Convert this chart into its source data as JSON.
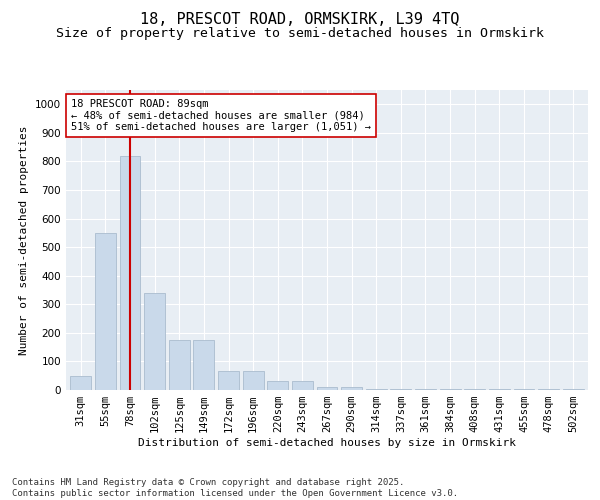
{
  "title_line1": "18, PRESCOT ROAD, ORMSKIRK, L39 4TQ",
  "title_line2": "Size of property relative to semi-detached houses in Ormskirk",
  "xlabel": "Distribution of semi-detached houses by size in Ormskirk",
  "ylabel": "Number of semi-detached properties",
  "categories": [
    "31sqm",
    "55sqm",
    "78sqm",
    "102sqm",
    "125sqm",
    "149sqm",
    "172sqm",
    "196sqm",
    "220sqm",
    "243sqm",
    "267sqm",
    "290sqm",
    "314sqm",
    "337sqm",
    "361sqm",
    "384sqm",
    "408sqm",
    "431sqm",
    "455sqm",
    "478sqm",
    "502sqm"
  ],
  "values": [
    50,
    550,
    820,
    340,
    175,
    175,
    65,
    65,
    30,
    30,
    10,
    10,
    5,
    5,
    5,
    5,
    5,
    5,
    5,
    5,
    5
  ],
  "bar_color": "#c9d9ea",
  "bar_edgecolor": "#aabcce",
  "redline_index": 2,
  "redline_color": "#cc0000",
  "annotation_text": "18 PRESCOT ROAD: 89sqm\n← 48% of semi-detached houses are smaller (984)\n51% of semi-detached houses are larger (1,051) →",
  "annotation_box_edgecolor": "#cc0000",
  "annotation_box_facecolor": "#ffffff",
  "ylim": [
    0,
    1050
  ],
  "yticks": [
    0,
    100,
    200,
    300,
    400,
    500,
    600,
    700,
    800,
    900,
    1000
  ],
  "background_color": "#e8eef4",
  "footer_text": "Contains HM Land Registry data © Crown copyright and database right 2025.\nContains public sector information licensed under the Open Government Licence v3.0.",
  "title_fontsize": 11,
  "subtitle_fontsize": 9.5,
  "axis_label_fontsize": 8,
  "tick_fontsize": 7.5,
  "annotation_fontsize": 7.5,
  "footer_fontsize": 6.5
}
